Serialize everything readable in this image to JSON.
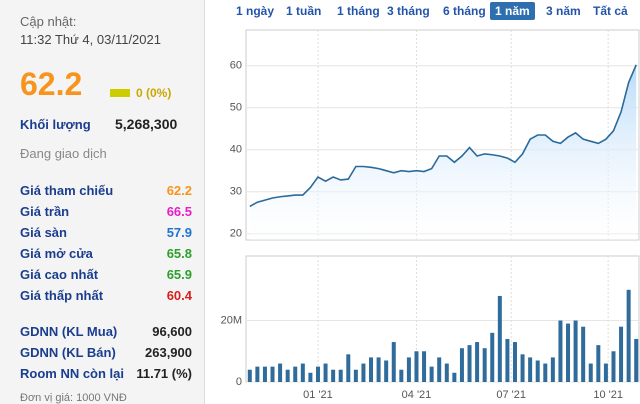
{
  "panel": {
    "updated_label": "Cập nhật:",
    "updated_time": "11:32 Thứ 4, 03/11/2021",
    "price": "62.2",
    "change": "0 (0%)",
    "volume_label": "Khối lượng",
    "volume": "5,268,300",
    "status": "Đang giao dịch",
    "prices": [
      {
        "label": "Giá tham chiếu",
        "value": "62.2",
        "color": "#f7941d"
      },
      {
        "label": "Giá trần",
        "value": "66.5",
        "color": "#e91ec9"
      },
      {
        "label": "Giá sàn",
        "value": "57.9",
        "color": "#1e73d2"
      },
      {
        "label": "Giá mở cửa",
        "value": "65.8",
        "color": "#2ca02c"
      },
      {
        "label": "Giá cao nhất",
        "value": "65.9",
        "color": "#2ca02c"
      },
      {
        "label": "Giá thấp nhất",
        "value": "60.4",
        "color": "#d62020"
      }
    ],
    "foreign": [
      {
        "label": "GDNN (KL Mua)",
        "value": "96,600"
      },
      {
        "label": "GDNN (KL Bán)",
        "value": "263,900"
      },
      {
        "label": "Room NN còn lại",
        "value": "11.71 (%)"
      }
    ],
    "footer": "Đơn vị giá: 1000 VNĐ"
  },
  "tabs": {
    "items": [
      "1 ngày",
      "1 tuần",
      "1 tháng",
      "3 tháng",
      "6 tháng",
      "1 năm",
      "3 năm",
      "Tất cả"
    ],
    "active": 5
  },
  "chart_data": [
    {
      "type": "area",
      "color": "#2a6a9a",
      "fill": "#b9dbf8",
      "grid": true,
      "values": [
        26.5,
        27.5,
        28,
        28.5,
        28.8,
        29,
        29.2,
        29.2,
        31,
        33.5,
        32.5,
        33.5,
        32.8,
        33,
        36,
        36,
        35.8,
        35.5,
        35,
        34.5,
        35,
        34.8,
        35,
        34.8,
        35.5,
        38.5,
        38.5,
        37,
        38.5,
        40.5,
        38.5,
        39,
        38.8,
        38.5,
        38,
        37,
        39,
        42.5,
        43.5,
        43.5,
        42,
        41.5,
        43,
        44,
        42.5,
        42,
        41.5,
        42.5,
        44.5,
        49,
        56,
        60.2
      ],
      "ylim": [
        18.5,
        68.5
      ],
      "yticks": [
        20,
        30,
        40,
        50,
        60
      ],
      "xlim": [
        -0.5,
        51.5
      ],
      "xticks": [
        {
          "value": 9,
          "label": "01 '21"
        },
        {
          "value": 22,
          "label": "04 '21"
        },
        {
          "value": 34.5,
          "label": "07 '21"
        },
        {
          "value": 47.3,
          "label": "10 '21"
        }
      ]
    },
    {
      "type": "bar",
      "color": "#2f6c9c",
      "grid": true,
      "values": [
        4000000,
        5000000,
        5000000,
        5000000,
        6000000,
        4000000,
        5000000,
        6000000,
        3000000,
        5000000,
        6000000,
        4000000,
        4000000,
        9000000,
        4000000,
        6000000,
        8000000,
        8000000,
        7000000,
        13000000,
        4000000,
        8000000,
        10000000,
        10000000,
        5000000,
        8000000,
        6000000,
        3000000,
        11000000,
        12000000,
        13000000,
        11000000,
        16000000,
        28000000,
        14000000,
        13000000,
        9000000,
        8000000,
        7000000,
        6000000,
        8000000,
        20000000,
        19000000,
        20000000,
        18000000,
        6000000,
        12000000,
        6000000,
        10000000,
        18000000,
        30000000,
        14000000
      ],
      "ylim": [
        0,
        41000000
      ],
      "yticks": [
        0,
        {
          "value": 20000000,
          "label": "20M"
        }
      ],
      "xlim": [
        -0.5,
        51.5
      ],
      "xticks": [
        {
          "value": 9,
          "label": "01 '21"
        },
        {
          "value": 22,
          "label": "04 '21"
        },
        {
          "value": 34.5,
          "label": "07 '21"
        },
        {
          "value": 47.3,
          "label": "10 '21"
        }
      ]
    }
  ]
}
